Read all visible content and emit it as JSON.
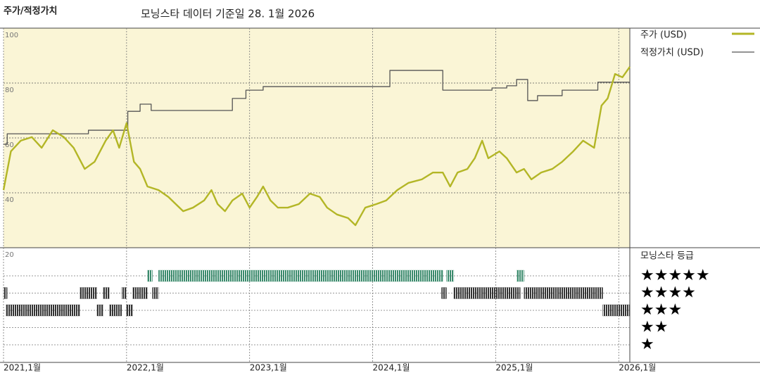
{
  "chart_data": {
    "type": "line",
    "title": "주가/적정가치",
    "subtitle": "모닝스타 데이터 기준일 28. 1월 2026",
    "xlim": [
      2021.0,
      2026.09
    ],
    "xticks": [
      {
        "value": 2021,
        "label": "2021,1월"
      },
      {
        "value": 2022,
        "label": "2022,1월"
      },
      {
        "value": 2023,
        "label": "2023,1월"
      },
      {
        "value": 2024,
        "label": "2024,1월"
      },
      {
        "value": 2025,
        "label": "2025,1월"
      },
      {
        "value": 2026,
        "label": "2026,1월"
      }
    ],
    "ylim": [
      20,
      100
    ],
    "yticks": [
      20,
      40,
      60,
      80,
      100
    ],
    "grid": true,
    "series": [
      {
        "name": "주가 (USD)",
        "color": "#b3b626",
        "x": [
          2021.0,
          2021.06,
          2021.14,
          2021.23,
          2021.31,
          2021.4,
          2021.49,
          2021.57,
          2021.66,
          2021.74,
          2021.83,
          2021.89,
          2021.94,
          2022.0,
          2022.06,
          2022.11,
          2022.17,
          2022.26,
          2022.34,
          2022.46,
          2022.54,
          2022.63,
          2022.69,
          2022.74,
          2022.8,
          2022.86,
          2022.94,
          2023.0,
          2023.06,
          2023.11,
          2023.17,
          2023.23,
          2023.31,
          2023.4,
          2023.49,
          2023.57,
          2023.63,
          2023.71,
          2023.8,
          2023.86,
          2023.94,
          2024.03,
          2024.11,
          2024.2,
          2024.29,
          2024.4,
          2024.49,
          2024.57,
          2024.63,
          2024.69,
          2024.77,
          2024.83,
          2024.89,
          2024.94,
          2025.03,
          2025.09,
          2025.17,
          2025.23,
          2025.29,
          2025.37,
          2025.46,
          2025.54,
          2025.63,
          2025.71,
          2025.8,
          2025.86,
          2025.91,
          2025.97,
          2026.03,
          2026.09
        ],
        "values": [
          41.0,
          55.1,
          59.0,
          60.3,
          56.4,
          62.8,
          60.3,
          56.4,
          48.7,
          51.3,
          59.0,
          62.8,
          56.4,
          65.4,
          51.3,
          48.7,
          42.3,
          41.0,
          38.5,
          33.3,
          34.6,
          37.2,
          41.0,
          35.9,
          33.3,
          37.2,
          39.7,
          34.6,
          38.5,
          42.3,
          37.2,
          34.6,
          34.6,
          35.9,
          39.7,
          38.5,
          34.6,
          32.1,
          30.8,
          28.2,
          34.6,
          35.9,
          37.2,
          41.0,
          43.6,
          44.9,
          47.4,
          47.4,
          42.3,
          47.4,
          48.7,
          52.6,
          59.0,
          52.6,
          55.1,
          52.6,
          47.4,
          48.7,
          44.9,
          47.4,
          48.7,
          51.3,
          55.1,
          59.0,
          56.4,
          71.8,
          74.4,
          83.3,
          82.1,
          85.9
        ]
      },
      {
        "name": "적정가치 (USD)",
        "color": "#555555",
        "step": true,
        "x": [
          2021.0,
          2021.03,
          2021.69,
          2022.01,
          2022.11,
          2022.2,
          2022.86,
          2022.97,
          2023.11,
          2024.14,
          2024.57,
          2024.97,
          2025.09,
          2025.17,
          2025.26,
          2025.34,
          2025.54,
          2025.83,
          2026.09
        ],
        "values": [
          57.7,
          61.5,
          62.8,
          69.7,
          72.3,
          70.0,
          74.4,
          77.4,
          78.7,
          84.6,
          77.4,
          78.2,
          79.0,
          81.3,
          73.6,
          75.4,
          77.4,
          80.3,
          80.3
        ]
      }
    ],
    "rating_title": "모닝스타 등급",
    "rating_labels": [
      "★★★★★",
      "★★★★",
      "★★★",
      "★★",
      "★"
    ],
    "rating_colors": {
      "5": "#3a8a6c",
      "other": "#333333"
    },
    "ratings": [
      {
        "rating": 5,
        "start": 2022.17,
        "end": 2022.21
      },
      {
        "rating": 5,
        "start": 2022.26,
        "end": 2024.57
      },
      {
        "rating": 5,
        "start": 2024.6,
        "end": 2024.66
      },
      {
        "rating": 5,
        "start": 2025.17,
        "end": 2025.23
      },
      {
        "rating": 4,
        "start": 2021.0,
        "end": 2021.03
      },
      {
        "rating": 4,
        "start": 2021.62,
        "end": 2021.76
      },
      {
        "rating": 4,
        "start": 2021.81,
        "end": 2021.86
      },
      {
        "rating": 4,
        "start": 2021.96,
        "end": 2022.0
      },
      {
        "rating": 4,
        "start": 2022.05,
        "end": 2022.17
      },
      {
        "rating": 4,
        "start": 2022.21,
        "end": 2022.26
      },
      {
        "rating": 4,
        "start": 2024.56,
        "end": 2024.6
      },
      {
        "rating": 4,
        "start": 2024.66,
        "end": 2025.2
      },
      {
        "rating": 4,
        "start": 2025.23,
        "end": 2025.87
      },
      {
        "rating": 3,
        "start": 2021.02,
        "end": 2021.62
      },
      {
        "rating": 3,
        "start": 2021.76,
        "end": 2021.81
      },
      {
        "rating": 3,
        "start": 2021.86,
        "end": 2021.96
      },
      {
        "rating": 3,
        "start": 2022.0,
        "end": 2022.05
      },
      {
        "rating": 3,
        "start": 2025.87,
        "end": 2026.09
      }
    ]
  }
}
